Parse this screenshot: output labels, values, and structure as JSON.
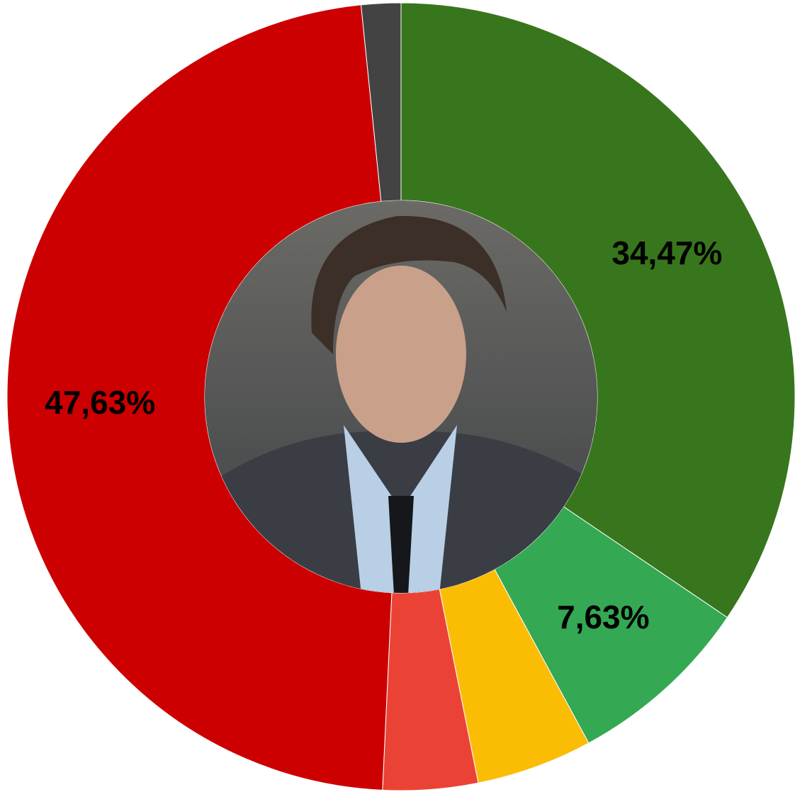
{
  "chart_data": {
    "type": "donut",
    "values": [
      34.47,
      7.63,
      4.76,
      3.89,
      47.63,
      1.62
    ],
    "value_labels": [
      "34,47%",
      "7,63%",
      null,
      null,
      "47,63%",
      null
    ],
    "colors": [
      "#38761d",
      "#34a853",
      "#fbbc04",
      "#ea4335",
      "#cc0000",
      "#434343"
    ]
  }
}
